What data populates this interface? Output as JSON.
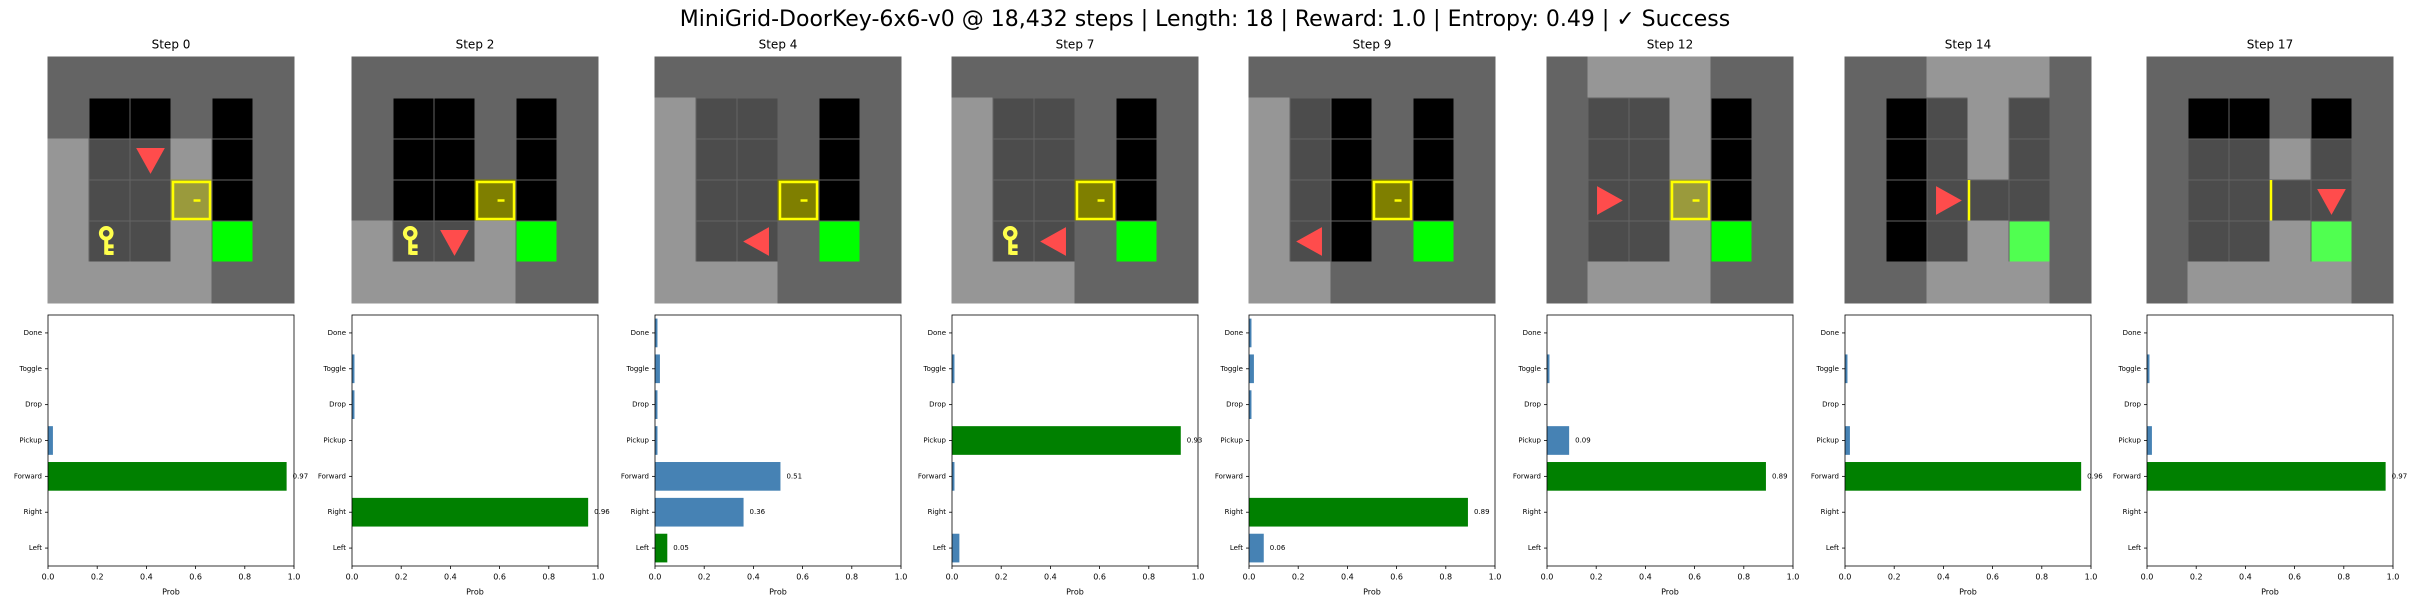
{
  "title": "MiniGrid-DoorKey-6x6-v0 @ 18,432 steps | Length: 18 | Reward: 1.0 | Entropy: 0.49 | ✓ Success",
  "chart_data": [
    {
      "type": "barh",
      "title": "Step 0",
      "categories": [
        "Left",
        "Right",
        "Forward",
        "Pickup",
        "Drop",
        "Toggle",
        "Done"
      ],
      "values": [
        0,
        0,
        0.97,
        0.02,
        0,
        0,
        0
      ],
      "value_labels": [
        null,
        null,
        "0.97",
        null,
        null,
        null,
        null
      ],
      "colors": [
        "#4682b4",
        "#4682b4",
        "#008000",
        "#4682b4",
        "#4682b4",
        "#4682b4",
        "#4682b4"
      ],
      "xlabel": "Prob",
      "xlim": [
        0,
        1
      ],
      "xticks": [
        {
          "value": 0,
          "label": "0.0"
        },
        0.2,
        0.4,
        0.6,
        0.8,
        {
          "value": 1,
          "label": "1.0"
        }
      ]
    },
    {
      "type": "barh",
      "title": "Step 2",
      "categories": [
        "Left",
        "Right",
        "Forward",
        "Pickup",
        "Drop",
        "Toggle",
        "Done"
      ],
      "values": [
        0,
        0.96,
        0,
        0,
        0.01,
        0.01,
        0
      ],
      "value_labels": [
        null,
        "0.96",
        null,
        null,
        null,
        null,
        null
      ],
      "colors": [
        "#4682b4",
        "#008000",
        "#4682b4",
        "#4682b4",
        "#4682b4",
        "#4682b4",
        "#4682b4"
      ],
      "xlabel": "Prob",
      "xlim": [
        0,
        1
      ],
      "xticks": [
        {
          "value": 0,
          "label": "0.0"
        },
        0.2,
        0.4,
        0.6,
        0.8,
        {
          "value": 1,
          "label": "1.0"
        }
      ]
    },
    {
      "type": "barh",
      "title": "Step 4",
      "categories": [
        "Left",
        "Right",
        "Forward",
        "Pickup",
        "Drop",
        "Toggle",
        "Done"
      ],
      "values": [
        0.05,
        0.36,
        0.51,
        0.01,
        0.01,
        0.02,
        0.01
      ],
      "value_labels": [
        "0.05",
        "0.36",
        "0.51",
        null,
        null,
        null,
        null
      ],
      "colors": [
        "#008000",
        "#4682b4",
        "#4682b4",
        "#4682b4",
        "#4682b4",
        "#4682b4",
        "#4682b4"
      ],
      "xlabel": "Prob",
      "xlim": [
        0,
        1
      ],
      "xticks": [
        {
          "value": 0,
          "label": "0.0"
        },
        0.2,
        0.4,
        0.6,
        0.8,
        {
          "value": 1,
          "label": "1.0"
        }
      ]
    },
    {
      "type": "barh",
      "title": "Step 7",
      "categories": [
        "Left",
        "Right",
        "Forward",
        "Pickup",
        "Drop",
        "Toggle",
        "Done"
      ],
      "values": [
        0.03,
        0,
        0.01,
        0.93,
        0,
        0.01,
        0
      ],
      "value_labels": [
        null,
        null,
        null,
        "0.93",
        null,
        null,
        null
      ],
      "colors": [
        "#4682b4",
        "#4682b4",
        "#4682b4",
        "#008000",
        "#4682b4",
        "#4682b4",
        "#4682b4"
      ],
      "xlabel": "Prob",
      "xlim": [
        0,
        1
      ],
      "xticks": [
        {
          "value": 0,
          "label": "0.0"
        },
        0.2,
        0.4,
        0.6,
        0.8,
        {
          "value": 1,
          "label": "1.0"
        }
      ]
    },
    {
      "type": "barh",
      "title": "Step 9",
      "categories": [
        "Left",
        "Right",
        "Forward",
        "Pickup",
        "Drop",
        "Toggle",
        "Done"
      ],
      "values": [
        0.06,
        0.89,
        0,
        0,
        0.01,
        0.02,
        0.01
      ],
      "value_labels": [
        "0.06",
        "0.89",
        null,
        null,
        null,
        null,
        null
      ],
      "colors": [
        "#4682b4",
        "#008000",
        "#4682b4",
        "#4682b4",
        "#4682b4",
        "#4682b4",
        "#4682b4"
      ],
      "xlabel": "Prob",
      "xlim": [
        0,
        1
      ],
      "xticks": [
        {
          "value": 0,
          "label": "0.0"
        },
        0.2,
        0.4,
        0.6,
        0.8,
        {
          "value": 1,
          "label": "1.0"
        }
      ]
    },
    {
      "type": "barh",
      "title": "Step 12",
      "categories": [
        "Left",
        "Right",
        "Forward",
        "Pickup",
        "Drop",
        "Toggle",
        "Done"
      ],
      "values": [
        0,
        0,
        0.89,
        0.09,
        0,
        0.01,
        0
      ],
      "value_labels": [
        null,
        null,
        "0.89",
        "0.09",
        null,
        null,
        null
      ],
      "colors": [
        "#4682b4",
        "#4682b4",
        "#008000",
        "#4682b4",
        "#4682b4",
        "#4682b4",
        "#4682b4"
      ],
      "xlabel": "Prob",
      "xlim": [
        0,
        1
      ],
      "xticks": [
        {
          "value": 0,
          "label": "0.0"
        },
        0.2,
        0.4,
        0.6,
        0.8,
        {
          "value": 1,
          "label": "1.0"
        }
      ]
    },
    {
      "type": "barh",
      "title": "Step 14",
      "categories": [
        "Left",
        "Right",
        "Forward",
        "Pickup",
        "Drop",
        "Toggle",
        "Done"
      ],
      "values": [
        0,
        0,
        0.96,
        0.02,
        0,
        0.01,
        0
      ],
      "value_labels": [
        null,
        null,
        "0.96",
        null,
        null,
        null,
        null
      ],
      "colors": [
        "#4682b4",
        "#4682b4",
        "#008000",
        "#4682b4",
        "#4682b4",
        "#4682b4",
        "#4682b4"
      ],
      "xlabel": "Prob",
      "xlim": [
        0,
        1
      ],
      "xticks": [
        {
          "value": 0,
          "label": "0.0"
        },
        0.2,
        0.4,
        0.6,
        0.8,
        {
          "value": 1,
          "label": "1.0"
        }
      ]
    },
    {
      "type": "barh",
      "title": "Step 17",
      "categories": [
        "Left",
        "Right",
        "Forward",
        "Pickup",
        "Drop",
        "Toggle",
        "Done"
      ],
      "values": [
        0,
        0,
        0.97,
        0.02,
        0,
        0.01,
        0
      ],
      "value_labels": [
        null,
        null,
        "0.97",
        null,
        null,
        null,
        null
      ],
      "colors": [
        "#4682b4",
        "#4682b4",
        "#008000",
        "#4682b4",
        "#4682b4",
        "#4682b4",
        "#4682b4"
      ],
      "xlabel": "Prob",
      "xlim": [
        0,
        1
      ],
      "xticks": [
        {
          "value": 0,
          "label": "0.0"
        },
        0.2,
        0.4,
        0.6,
        0.8,
        {
          "value": 1,
          "label": "1.0"
        }
      ]
    }
  ]
}
